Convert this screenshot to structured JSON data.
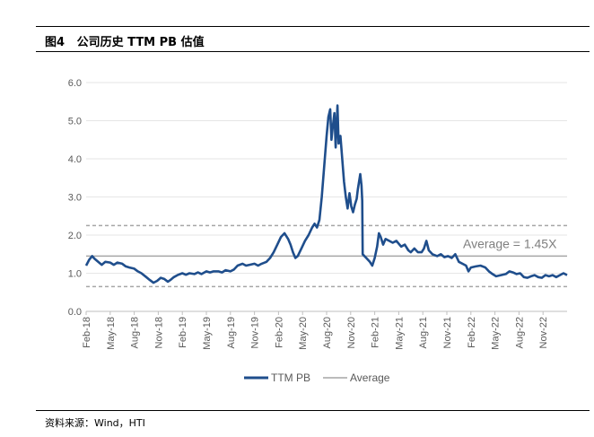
{
  "figure": {
    "title": "图4   公司历史 TTM PB 估值",
    "source": "资料来源：Wind，HTI"
  },
  "chart_data": {
    "type": "line",
    "title": "公司历史 TTM PB 估值",
    "xlabel": "",
    "ylabel": "",
    "ylim": [
      0,
      6
    ],
    "yticks": [
      "0.0",
      "1.0",
      "2.0",
      "3.0",
      "4.0",
      "5.0",
      "6.0"
    ],
    "x_start": "2018-02",
    "x_end": "2023-01",
    "x_tick_labels": [
      "Feb-18",
      "May-18",
      "Aug-18",
      "Nov-18",
      "Feb-19",
      "May-19",
      "Aug-19",
      "Nov-19",
      "Feb-20",
      "May-20",
      "Aug-20",
      "Nov-20",
      "Feb-21",
      "May-21",
      "Aug-21",
      "Nov-21",
      "Feb-22",
      "May-22",
      "Aug-22",
      "Nov-22"
    ],
    "grid": true,
    "legend_position": "bottom",
    "series": [
      {
        "name": "TTM PB",
        "color": "#1f4e8c",
        "style": "solid",
        "points": [
          [
            0,
            1.2
          ],
          [
            0.25,
            1.35
          ],
          [
            0.5,
            1.45
          ],
          [
            0.7,
            1.38
          ],
          [
            1,
            1.3
          ],
          [
            1.3,
            1.22
          ],
          [
            1.6,
            1.3
          ],
          [
            2,
            1.28
          ],
          [
            2.3,
            1.22
          ],
          [
            2.6,
            1.28
          ],
          [
            3,
            1.25
          ],
          [
            3.3,
            1.18
          ],
          [
            3.6,
            1.15
          ],
          [
            4,
            1.12
          ],
          [
            4.3,
            1.05
          ],
          [
            4.6,
            1.0
          ],
          [
            5,
            0.9
          ],
          [
            5.3,
            0.82
          ],
          [
            5.6,
            0.75
          ],
          [
            5.9,
            0.8
          ],
          [
            6.2,
            0.88
          ],
          [
            6.5,
            0.85
          ],
          [
            6.8,
            0.78
          ],
          [
            7,
            0.82
          ],
          [
            7.3,
            0.9
          ],
          [
            7.6,
            0.95
          ],
          [
            8,
            1.0
          ],
          [
            8.3,
            0.96
          ],
          [
            8.6,
            1.0
          ],
          [
            9,
            0.98
          ],
          [
            9.3,
            1.02
          ],
          [
            9.6,
            0.98
          ],
          [
            10,
            1.05
          ],
          [
            10.3,
            1.02
          ],
          [
            10.6,
            1.05
          ],
          [
            11,
            1.05
          ],
          [
            11.3,
            1.02
          ],
          [
            11.6,
            1.08
          ],
          [
            12,
            1.05
          ],
          [
            12.3,
            1.1
          ],
          [
            12.6,
            1.2
          ],
          [
            13,
            1.25
          ],
          [
            13.3,
            1.2
          ],
          [
            13.6,
            1.22
          ],
          [
            14,
            1.25
          ],
          [
            14.3,
            1.2
          ],
          [
            14.6,
            1.25
          ],
          [
            15,
            1.3
          ],
          [
            15.3,
            1.4
          ],
          [
            15.6,
            1.55
          ],
          [
            15.9,
            1.75
          ],
          [
            16.2,
            1.95
          ],
          [
            16.5,
            2.05
          ],
          [
            16.8,
            1.9
          ],
          [
            17,
            1.75
          ],
          [
            17.2,
            1.55
          ],
          [
            17.4,
            1.4
          ],
          [
            17.6,
            1.45
          ],
          [
            17.9,
            1.65
          ],
          [
            18.2,
            1.85
          ],
          [
            18.5,
            2.0
          ],
          [
            18.8,
            2.2
          ],
          [
            19,
            2.3
          ],
          [
            19.2,
            2.2
          ],
          [
            19.4,
            2.4
          ],
          [
            19.6,
            3.0
          ],
          [
            19.8,
            3.8
          ],
          [
            20,
            4.6
          ],
          [
            20.15,
            5.1
          ],
          [
            20.3,
            5.3
          ],
          [
            20.4,
            4.5
          ],
          [
            20.5,
            4.8
          ],
          [
            20.65,
            5.2
          ],
          [
            20.75,
            4.3
          ],
          [
            20.9,
            5.4
          ],
          [
            21.0,
            4.4
          ],
          [
            21.15,
            4.6
          ],
          [
            21.3,
            4.0
          ],
          [
            21.45,
            3.4
          ],
          [
            21.6,
            3.0
          ],
          [
            21.75,
            2.7
          ],
          [
            21.9,
            3.1
          ],
          [
            22.05,
            2.75
          ],
          [
            22.2,
            2.6
          ],
          [
            22.35,
            2.8
          ],
          [
            22.5,
            2.95
          ],
          [
            22.6,
            3.2
          ],
          [
            22.8,
            3.6
          ],
          [
            22.9,
            3.3
          ],
          [
            22.96,
            2.9
          ],
          [
            23.0,
            1.5
          ],
          [
            23.3,
            1.4
          ],
          [
            23.6,
            1.3
          ],
          [
            23.8,
            1.2
          ],
          [
            24.0,
            1.4
          ],
          [
            24.2,
            1.7
          ],
          [
            24.35,
            2.05
          ],
          [
            24.5,
            1.95
          ],
          [
            24.7,
            1.75
          ],
          [
            24.9,
            1.9
          ],
          [
            25.2,
            1.85
          ],
          [
            25.5,
            1.8
          ],
          [
            25.8,
            1.85
          ],
          [
            26.2,
            1.7
          ],
          [
            26.5,
            1.75
          ],
          [
            26.8,
            1.6
          ],
          [
            27.0,
            1.55
          ],
          [
            27.3,
            1.65
          ],
          [
            27.6,
            1.55
          ],
          [
            27.9,
            1.55
          ],
          [
            28.1,
            1.65
          ],
          [
            28.3,
            1.85
          ],
          [
            28.5,
            1.6
          ],
          [
            28.8,
            1.5
          ],
          [
            29.2,
            1.45
          ],
          [
            29.5,
            1.5
          ],
          [
            29.8,
            1.42
          ],
          [
            30.1,
            1.45
          ],
          [
            30.4,
            1.4
          ],
          [
            30.7,
            1.5
          ],
          [
            31.0,
            1.3
          ],
          [
            31.3,
            1.25
          ],
          [
            31.6,
            1.2
          ],
          [
            31.8,
            1.05
          ],
          [
            32.0,
            1.15
          ],
          [
            32.4,
            1.18
          ],
          [
            32.8,
            1.2
          ],
          [
            33.2,
            1.15
          ],
          [
            33.5,
            1.05
          ],
          [
            33.8,
            0.98
          ],
          [
            34.1,
            0.92
          ],
          [
            34.5,
            0.95
          ],
          [
            34.9,
            0.98
          ],
          [
            35.2,
            1.05
          ],
          [
            35.5,
            1.02
          ],
          [
            35.8,
            0.98
          ],
          [
            36.1,
            1.0
          ],
          [
            36.4,
            0.9
          ],
          [
            36.7,
            0.88
          ],
          [
            37.0,
            0.92
          ],
          [
            37.3,
            0.95
          ],
          [
            37.6,
            0.9
          ],
          [
            37.9,
            0.88
          ],
          [
            38.2,
            0.95
          ],
          [
            38.5,
            0.92
          ],
          [
            38.8,
            0.95
          ],
          [
            39.1,
            0.9
          ],
          [
            39.4,
            0.95
          ],
          [
            39.7,
            1.0
          ],
          [
            40.0,
            0.95
          ]
        ]
      },
      {
        "name": "Average",
        "color": "#a6a6a6",
        "style": "solid",
        "value": 1.45
      },
      {
        "name": "Average +1 std",
        "color": "#a6a6a6",
        "style": "dashed",
        "value": 2.25,
        "show_in_legend": false
      },
      {
        "name": "Average -1 std",
        "color": "#a6a6a6",
        "style": "dashed",
        "value": 0.65,
        "show_in_legend": false
      }
    ],
    "annotations": [
      {
        "text": "Average = 1.45X",
        "value": 1.45
      }
    ],
    "legend": [
      "TTM PB",
      "Average"
    ]
  }
}
